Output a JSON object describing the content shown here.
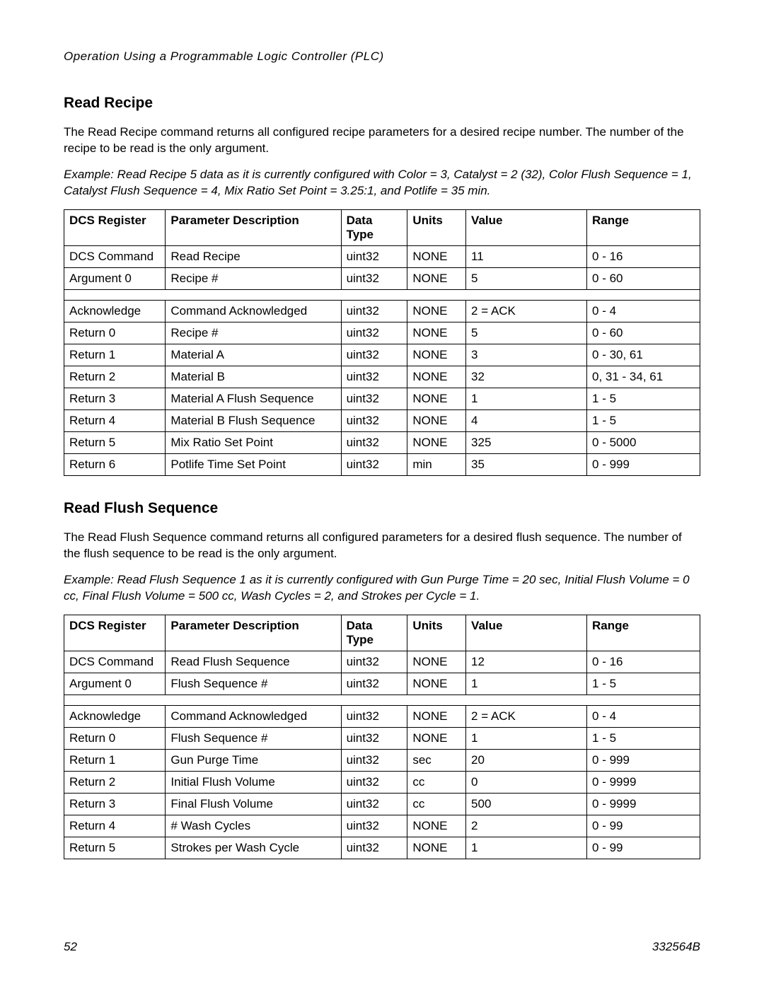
{
  "running_head": "Operation Using a Programmable Logic Controller (PLC)",
  "section1": {
    "title": "Read Recipe",
    "para": "The Read Recipe command returns all configured recipe parameters for a desired recipe number. The number of the recipe to be read is the only argument.",
    "example": "Example: Read Recipe 5 data as it is currently configured with Color = 3, Catalyst = 2 (32), Color Flush Sequence = 1, Catalyst Flush Sequence = 4, Mix Ratio Set Point = 3.25:1, and Potlife = 35 min."
  },
  "section2": {
    "title": "Read Flush Sequence",
    "para": "The Read Flush Sequence command returns all configured parameters for a desired flush sequence. The number of the flush sequence to be read is the only argument.",
    "example": "Example: Read Flush Sequence 1 as it is currently configured with Gun Purge Time = 20 sec, Initial Flush Volume = 0 cc, Final Flush Volume = 500 cc, Wash Cycles = 2, and Strokes per Cycle = 1."
  },
  "headers": {
    "c1": "DCS Register",
    "c2": "Parameter Description",
    "c3": "Data Type",
    "c4": "Units",
    "c5": "Value",
    "c6": "Range"
  },
  "table1": {
    "top": [
      {
        "r": "DCS Command",
        "p": "Read Recipe",
        "d": "uint32",
        "u": "NONE",
        "v": "11",
        "g": "0 - 16"
      },
      {
        "r": "Argument 0",
        "p": "Recipe #",
        "d": "uint32",
        "u": "NONE",
        "v": "5",
        "g": "0 - 60"
      }
    ],
    "bottom": [
      {
        "r": "Acknowledge",
        "p": "Command Acknowledged",
        "d": "uint32",
        "u": "NONE",
        "v": "2 = ACK",
        "g": "0 - 4"
      },
      {
        "r": "Return 0",
        "p": "Recipe #",
        "d": "uint32",
        "u": "NONE",
        "v": "5",
        "g": "0 - 60"
      },
      {
        "r": "Return 1",
        "p": "Material A",
        "d": "uint32",
        "u": "NONE",
        "v": "3",
        "g": "0 - 30, 61"
      },
      {
        "r": "Return 2",
        "p": "Material B",
        "d": "uint32",
        "u": "NONE",
        "v": "32",
        "g": "0, 31 - 34, 61"
      },
      {
        "r": "Return 3",
        "p": "Material A Flush Sequence",
        "d": "uint32",
        "u": "NONE",
        "v": "1",
        "g": "1 - 5"
      },
      {
        "r": "Return 4",
        "p": "Material B Flush Sequence",
        "d": "uint32",
        "u": "NONE",
        "v": "4",
        "g": "1 - 5"
      },
      {
        "r": "Return 5",
        "p": "Mix Ratio Set Point",
        "d": "uint32",
        "u": "NONE",
        "v": "325",
        "g": "0 - 5000"
      },
      {
        "r": "Return 6",
        "p": "Potlife Time Set Point",
        "d": "uint32",
        "u": "min",
        "v": "35",
        "g": "0 - 999"
      }
    ]
  },
  "table2": {
    "top": [
      {
        "r": "DCS Command",
        "p": "Read Flush Sequence",
        "d": "uint32",
        "u": "NONE",
        "v": "12",
        "g": "0 - 16"
      },
      {
        "r": "Argument 0",
        "p": "Flush Sequence #",
        "d": "uint32",
        "u": "NONE",
        "v": "1",
        "g": "1 - 5"
      }
    ],
    "bottom": [
      {
        "r": "Acknowledge",
        "p": "Command Acknowledged",
        "d": "uint32",
        "u": "NONE",
        "v": "2 = ACK",
        "g": "0 - 4"
      },
      {
        "r": "Return 0",
        "p": "Flush Sequence #",
        "d": "uint32",
        "u": "NONE",
        "v": "1",
        "g": "1 - 5"
      },
      {
        "r": "Return 1",
        "p": "Gun Purge Time",
        "d": "uint32",
        "u": "sec",
        "v": "20",
        "g": "0 - 999"
      },
      {
        "r": "Return 2",
        "p": "Initial Flush Volume",
        "d": "uint32",
        "u": "cc",
        "v": "0",
        "g": "0 - 9999"
      },
      {
        "r": "Return 3",
        "p": "Final Flush Volume",
        "d": "uint32",
        "u": "cc",
        "v": "500",
        "g": "0 - 9999"
      },
      {
        "r": "Return 4",
        "p": "# Wash Cycles",
        "d": "uint32",
        "u": "NONE",
        "v": "2",
        "g": "0 - 99"
      },
      {
        "r": "Return 5",
        "p": "Strokes per Wash Cycle",
        "d": "uint32",
        "u": "NONE",
        "v": "1",
        "g": "0 - 99"
      }
    ]
  },
  "footer": {
    "page": "52",
    "doc": "332564B"
  }
}
